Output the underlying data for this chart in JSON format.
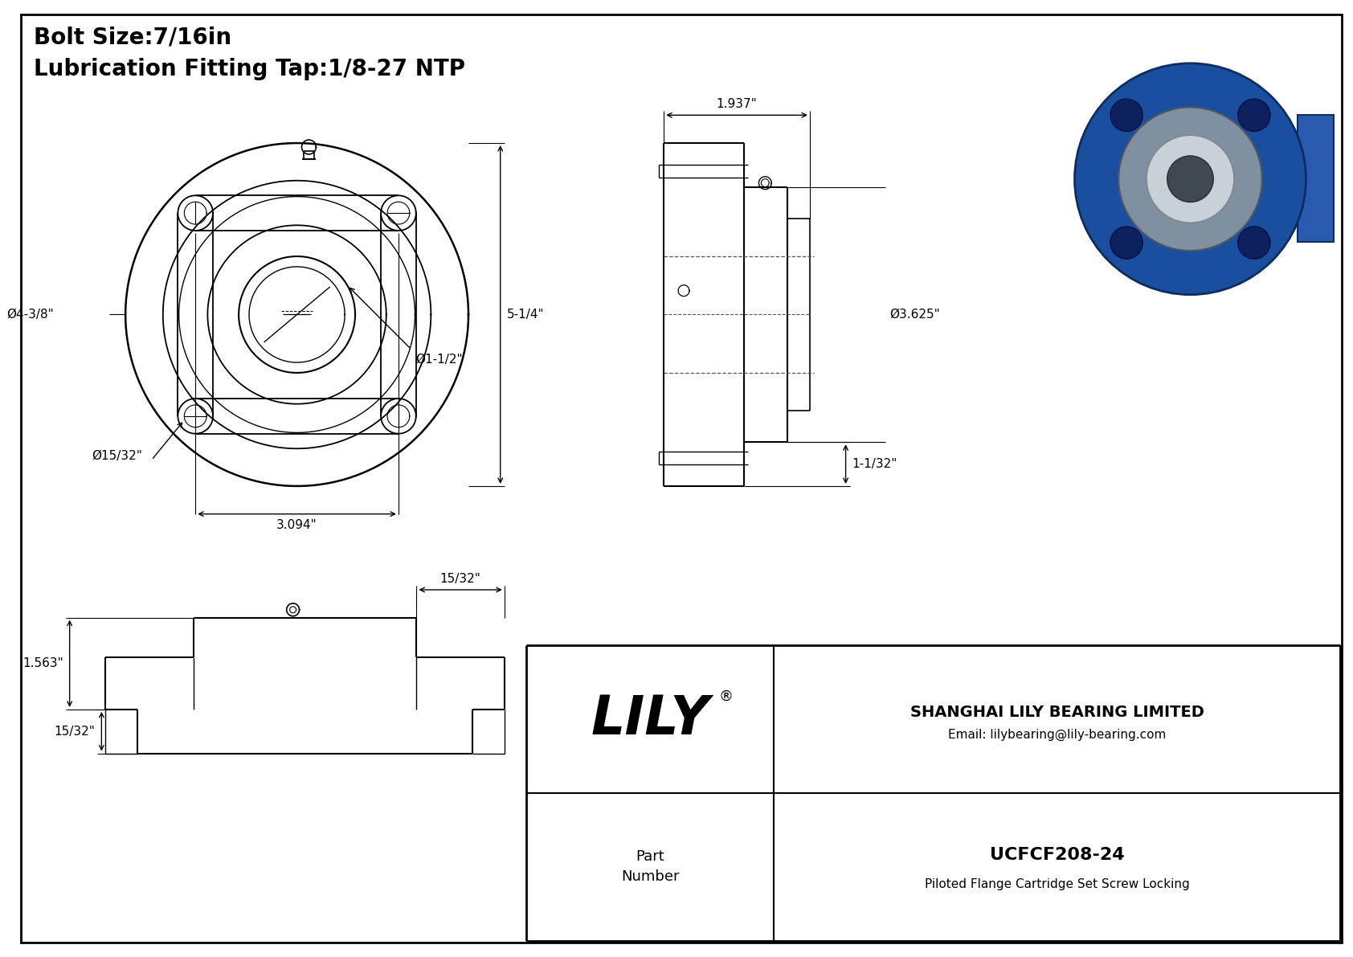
{
  "bg_color": "#ffffff",
  "border_color": "#000000",
  "line_color": "#000000",
  "title_lines": [
    "Bolt Size:7/16in",
    "Lubrication Fitting Tap:1/8-27 NTP"
  ],
  "title_fontsize": 20,
  "company_name": "SHANGHAI LILY BEARING LIMITED",
  "company_email": "Email: lilybearing@lily-bearing.com",
  "part_label": "Part\nNumber",
  "part_number": "UCFCF208-24",
  "part_desc": "Piloted Flange Cartridge Set Screw Locking",
  "lily_reg": "®",
  "dims_front": {
    "bolt_hole_dia": "Ø15/32\"",
    "flange_dia": "Ø4-3/8\"",
    "bore_dia": "Ø1-1/2\"",
    "bolt_circle": "3.094\"",
    "height": "5-1/4\""
  },
  "dims_side": {
    "width": "1.937\"",
    "depth": "1-1/32\"",
    "bearing_dia": "Ø3.625\""
  },
  "dims_bottom": {
    "height1": "1.563\"",
    "height2": "15/32\"",
    "width_top": "15/32\""
  }
}
